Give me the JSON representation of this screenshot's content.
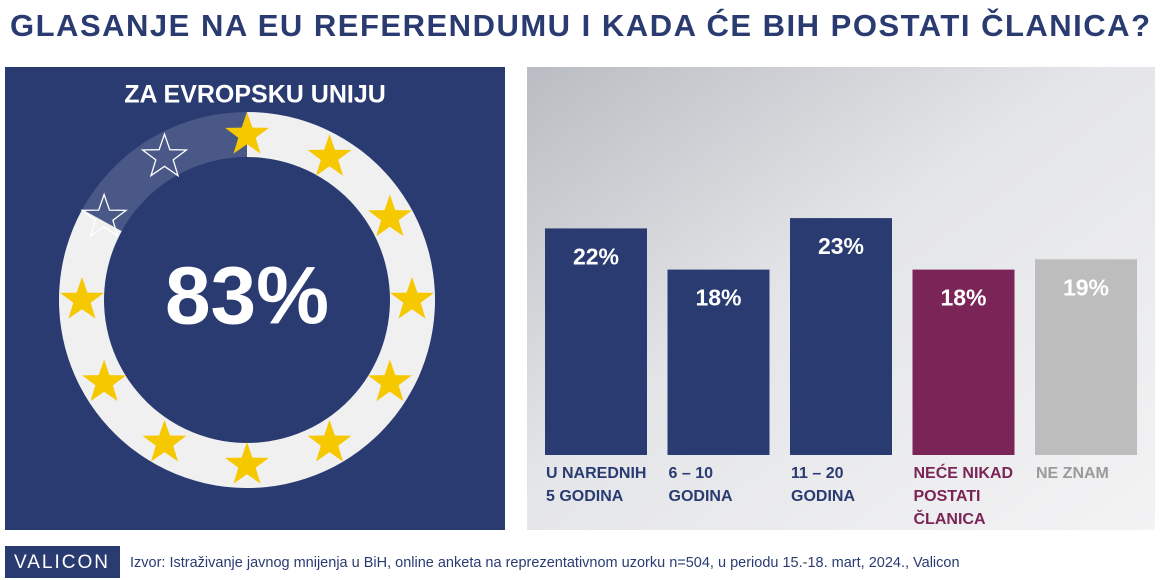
{
  "title": "GLASANJE NA EU REFERENDUMU I KADA ĆE BIH POSTATI ČLANICA?",
  "chart_data": [
    {
      "type": "donut",
      "title": "ZA EVROPSKU UNIJU",
      "values": [
        83
      ],
      "value_labels": [
        "83%"
      ],
      "color": "#f0f0f0"
    },
    {
      "type": "bar",
      "categories": [
        "U NAREDNIH 5 GODINA",
        "6 – 10 GODINA",
        "11 – 20 GODINA",
        "NEĆE NIKAD POSTATI ČLANICA",
        "NE ZNAM"
      ],
      "values": [
        22,
        18,
        23,
        18,
        19
      ],
      "value_labels": [
        "22%",
        "18%",
        "23%",
        "18%",
        "19%"
      ],
      "colors": [
        "#2a3b72",
        "#2a3b72",
        "#2a3b72",
        "#7b2457",
        "#bdbdbd"
      ]
    }
  ],
  "brand": "VALICON",
  "source": "Izvor: Istraživanje javnog mnijenja u BiH, online anketa na reprezentativnom uzorku n=504, u periodu 15.-18. mart, 2024., Valicon"
}
